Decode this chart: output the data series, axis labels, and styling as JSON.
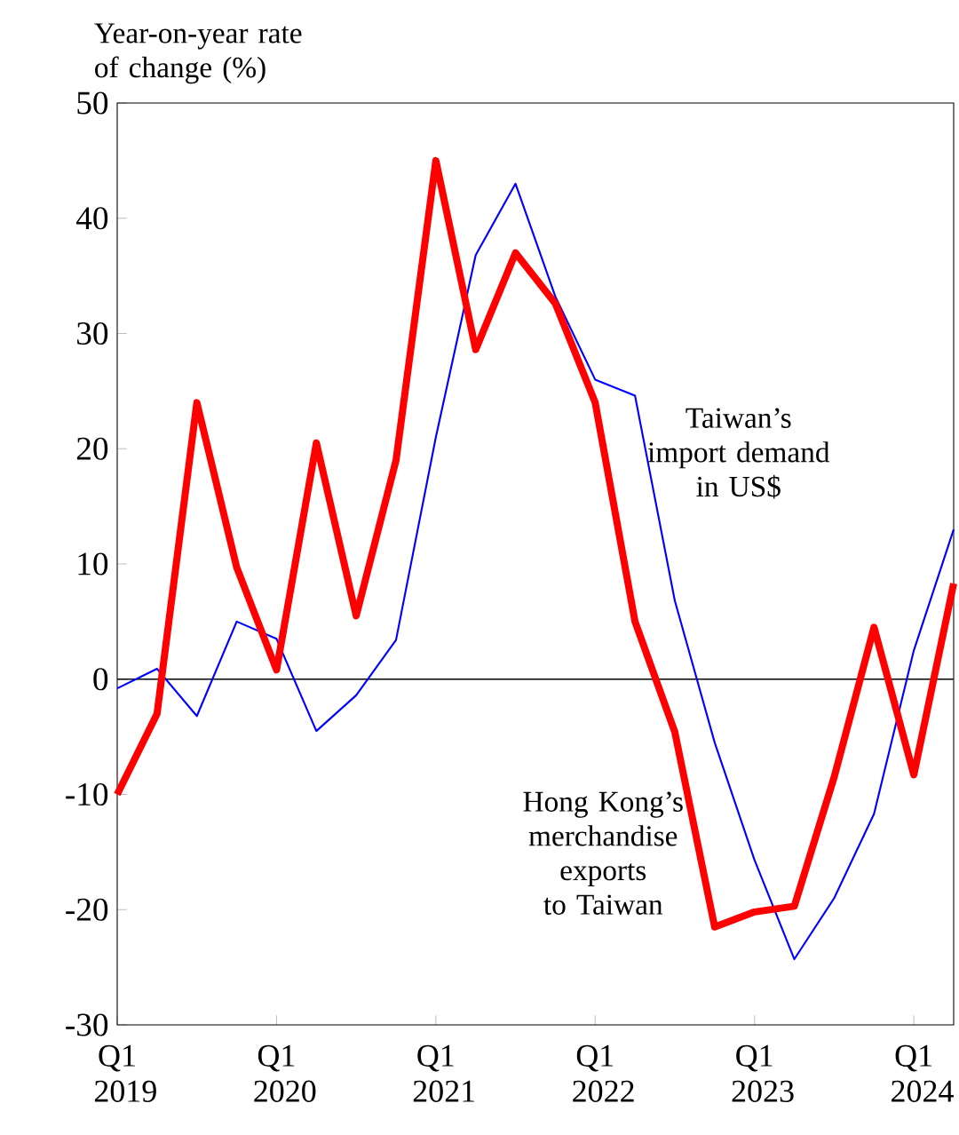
{
  "chart_data": {
    "type": "line",
    "ylabel": "Year-on-year rate of change (%)",
    "categories": [
      "Q1 2019",
      null,
      null,
      null,
      "Q1 2020",
      null,
      null,
      null,
      "Q1 2021",
      null,
      null,
      null,
      "Q1 2022",
      null,
      null,
      null,
      "Q1 2023",
      null,
      null,
      null,
      "Q1 2024",
      null
    ],
    "series": [
      {
        "name": "Taiwan’s import demand in US$",
        "color": "#0000ff",
        "values": [
          -0.8,
          0.9,
          -3.2,
          5,
          3.5,
          -4.5,
          -1.4,
          3.4,
          21,
          36.8,
          43,
          33.2,
          26,
          24.6,
          6.8,
          -5.5,
          -15.7,
          -24.3,
          -19,
          -11.7,
          2.5,
          13
        ]
      },
      {
        "name": "Hong Kong’s merchandise exports to Taiwan",
        "color": "#ff0000",
        "values": [
          -10,
          -3,
          24,
          9.7,
          0.8,
          20.5,
          5.5,
          19,
          45,
          28.6,
          37,
          32.6,
          24,
          5,
          -4.6,
          -21.5,
          -20.2,
          -19.7,
          -8.5,
          4.5,
          -8.3,
          8.3
        ]
      }
    ],
    "ylim": [
      -30,
      50
    ],
    "yticks": [
      -30,
      -20,
      -10,
      0,
      10,
      20,
      30,
      40,
      50
    ],
    "ref_lines": [
      {
        "axis": "y",
        "value": 0,
        "color": "#000000"
      }
    ],
    "grid": false,
    "marker": "none",
    "line_style": "solid"
  }
}
